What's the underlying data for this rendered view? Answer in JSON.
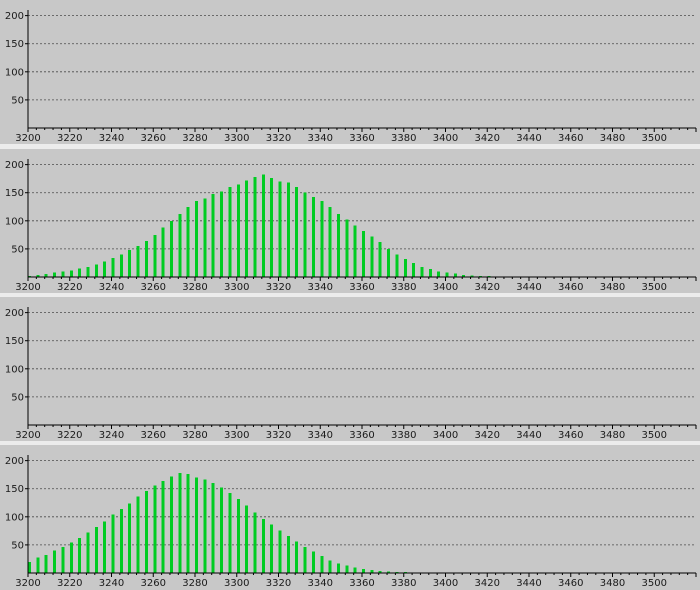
{
  "colors": {
    "background": "#c8c8c8",
    "bar": "#00cc22",
    "separator": "#ececec",
    "grid": "#4a4a4a"
  },
  "chart_data": [
    {
      "type": "bar",
      "title": "",
      "xlabel": "",
      "ylabel": "",
      "xlim": [
        3200,
        3520
      ],
      "ylim": [
        0,
        210
      ],
      "xticks": [
        3200,
        3220,
        3240,
        3260,
        3280,
        3300,
        3320,
        3340,
        3360,
        3380,
        3400,
        3420,
        3440,
        3460,
        3480,
        3500
      ],
      "yticks": [
        50,
        100,
        150,
        200
      ],
      "grid": true,
      "series": [
        {
          "x": [],
          "values": []
        }
      ]
    },
    {
      "type": "bar",
      "title": "",
      "xlabel": "",
      "ylabel": "",
      "xlim": [
        3200,
        3520
      ],
      "ylim": [
        0,
        210
      ],
      "xticks": [
        3200,
        3220,
        3240,
        3260,
        3280,
        3300,
        3320,
        3340,
        3360,
        3380,
        3400,
        3420,
        3440,
        3460,
        3480,
        3500
      ],
      "yticks": [
        50,
        100,
        150,
        200
      ],
      "grid": true,
      "series": [
        {
          "x": [
            3200,
            3204,
            3208,
            3212,
            3216,
            3220,
            3224,
            3228,
            3232,
            3236,
            3240,
            3244,
            3248,
            3252,
            3256,
            3260,
            3264,
            3268,
            3272,
            3276,
            3280,
            3284,
            3288,
            3292,
            3296,
            3300,
            3304,
            3308,
            3312,
            3316,
            3320,
            3324,
            3328,
            3332,
            3336,
            3340,
            3344,
            3348,
            3352,
            3356,
            3360,
            3364,
            3368,
            3372,
            3376,
            3380,
            3384,
            3388,
            3392,
            3396,
            3400,
            3404,
            3408,
            3412,
            3416,
            3420,
            3424,
            3428,
            3432,
            3436,
            3440,
            3444,
            3448
          ],
          "values": [
            2,
            4,
            5,
            8,
            10,
            12,
            15,
            18,
            22,
            28,
            34,
            40,
            48,
            55,
            64,
            75,
            88,
            100,
            112,
            125,
            135,
            140,
            148,
            152,
            160,
            165,
            172,
            178,
            182,
            176,
            170,
            168,
            160,
            150,
            142,
            135,
            125,
            112,
            102,
            92,
            82,
            72,
            62,
            50,
            40,
            32,
            25,
            18,
            14,
            10,
            8,
            6,
            4,
            3,
            2,
            2,
            1,
            1,
            1,
            0,
            0,
            0,
            0
          ]
        }
      ]
    },
    {
      "type": "bar",
      "title": "",
      "xlabel": "",
      "ylabel": "",
      "xlim": [
        3200,
        3520
      ],
      "ylim": [
        0,
        210
      ],
      "xticks": [
        3200,
        3220,
        3240,
        3260,
        3280,
        3300,
        3320,
        3340,
        3360,
        3380,
        3400,
        3420,
        3440,
        3460,
        3480,
        3500
      ],
      "yticks": [
        50,
        100,
        150,
        200
      ],
      "grid": true,
      "series": [
        {
          "x": [],
          "values": []
        }
      ]
    },
    {
      "type": "bar",
      "title": "",
      "xlabel": "",
      "ylabel": "",
      "xlim": [
        3200,
        3520
      ],
      "ylim": [
        0,
        210
      ],
      "xticks": [
        3200,
        3220,
        3240,
        3260,
        3280,
        3300,
        3320,
        3340,
        3360,
        3380,
        3400,
        3420,
        3440,
        3460,
        3480,
        3500
      ],
      "yticks": [
        50,
        100,
        150,
        200
      ],
      "grid": true,
      "series": [
        {
          "x": [
            3200,
            3204,
            3208,
            3212,
            3216,
            3220,
            3224,
            3228,
            3232,
            3236,
            3240,
            3244,
            3248,
            3252,
            3256,
            3260,
            3264,
            3268,
            3272,
            3276,
            3280,
            3284,
            3288,
            3292,
            3296,
            3300,
            3304,
            3308,
            3312,
            3316,
            3320,
            3324,
            3328,
            3332,
            3336,
            3340,
            3344,
            3348,
            3352,
            3356,
            3360,
            3364,
            3368,
            3372,
            3376,
            3380,
            3384,
            3388,
            3392,
            3396,
            3400,
            3404,
            3408
          ],
          "values": [
            20,
            28,
            32,
            40,
            46,
            54,
            62,
            72,
            82,
            92,
            104,
            114,
            124,
            136,
            146,
            156,
            164,
            172,
            178,
            176,
            170,
            166,
            160,
            152,
            142,
            132,
            120,
            108,
            96,
            86,
            76,
            66,
            56,
            46,
            38,
            30,
            22,
            17,
            13,
            10,
            7,
            5,
            4,
            3,
            2,
            2,
            1,
            1,
            1,
            0,
            0,
            0,
            0
          ]
        }
      ]
    }
  ]
}
